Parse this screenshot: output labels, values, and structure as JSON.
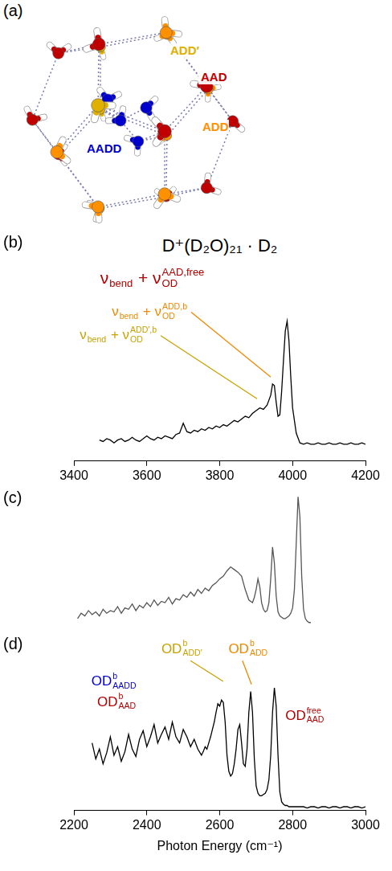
{
  "panel_labels": [
    "(a)",
    "(b)",
    "(c)",
    "(d)"
  ],
  "structure": {
    "labels": [
      {
        "text": "ADD′",
        "color": "#e0b000"
      },
      {
        "text": "AAD",
        "color": "#c00000"
      },
      {
        "text": "ADD",
        "color": "#ff9000"
      },
      {
        "text": "AADD",
        "color": "#0000cc"
      }
    ]
  },
  "chart_data": [
    {
      "type": "line",
      "title": "D⁺(D₂O)₂₁ · D₂",
      "color": "#000000",
      "xlim": [
        3400,
        4200
      ],
      "xticks": [
        3400,
        3600,
        3800,
        4000,
        4200
      ],
      "ylim": [
        0,
        1.4
      ],
      "grid": false,
      "tick_labels": "x",
      "x": [
        3470,
        3480,
        3490,
        3500,
        3510,
        3520,
        3530,
        3540,
        3550,
        3560,
        3570,
        3580,
        3590,
        3600,
        3610,
        3620,
        3630,
        3640,
        3650,
        3660,
        3670,
        3680,
        3690,
        3700,
        3710,
        3720,
        3730,
        3740,
        3750,
        3760,
        3770,
        3780,
        3790,
        3800,
        3810,
        3820,
        3830,
        3840,
        3850,
        3860,
        3870,
        3880,
        3890,
        3900,
        3910,
        3920,
        3930,
        3940,
        3945,
        3950,
        3955,
        3960,
        3965,
        3970,
        3975,
        3980,
        3985,
        3990,
        3995,
        4000,
        4010,
        4020,
        4030,
        4040,
        4050,
        4060,
        4070,
        4080,
        4090,
        4100,
        4110,
        4120,
        4130,
        4140,
        4150,
        4160,
        4170,
        4180,
        4190,
        4200
      ],
      "values": [
        0.15,
        0.14,
        0.16,
        0.15,
        0.13,
        0.15,
        0.16,
        0.14,
        0.15,
        0.17,
        0.15,
        0.14,
        0.16,
        0.18,
        0.16,
        0.15,
        0.17,
        0.16,
        0.18,
        0.17,
        0.16,
        0.19,
        0.2,
        0.27,
        0.21,
        0.2,
        0.22,
        0.21,
        0.23,
        0.22,
        0.24,
        0.23,
        0.25,
        0.24,
        0.26,
        0.25,
        0.27,
        0.29,
        0.28,
        0.3,
        0.32,
        0.31,
        0.34,
        0.36,
        0.38,
        0.37,
        0.4,
        0.47,
        0.55,
        0.54,
        0.42,
        0.32,
        0.33,
        0.5,
        0.72,
        0.93,
        1.0,
        0.86,
        0.6,
        0.38,
        0.2,
        0.13,
        0.12,
        0.13,
        0.12,
        0.12,
        0.13,
        0.12,
        0.12,
        0.13,
        0.12,
        0.12,
        0.13,
        0.12,
        0.12,
        0.13,
        0.12,
        0.12,
        0.13,
        0.12
      ],
      "annotations": [
        {
          "color": "#b00000",
          "text": [
            {
              "text": "ν"
            },
            {
              "sub": "bend"
            },
            {
              "text": " + ν"
            },
            {
              "sub": "OD",
              "sup": "AAD,free"
            }
          ]
        },
        {
          "color": "#f08800",
          "text": [
            {
              "text": "ν"
            },
            {
              "sub": "bend"
            },
            {
              "text": " + ν"
            },
            {
              "sub": "OD",
              "sup": "ADD,b"
            }
          ]
        },
        {
          "color": "#c9a200",
          "text": [
            {
              "text": "ν"
            },
            {
              "sub": "bend"
            },
            {
              "text": " + ν"
            },
            {
              "sub": "OD",
              "sup": "ADD′,b"
            }
          ]
        }
      ]
    },
    {
      "type": "line",
      "color": "#555555",
      "xlim": [
        2200,
        3000
      ],
      "ylim": [
        0,
        1.05
      ],
      "grid": false,
      "tick_labels": false,
      "x": [
        2210,
        2220,
        2230,
        2240,
        2250,
        2260,
        2270,
        2280,
        2290,
        2300,
        2310,
        2320,
        2330,
        2340,
        2350,
        2360,
        2370,
        2380,
        2390,
        2400,
        2410,
        2420,
        2430,
        2440,
        2450,
        2460,
        2470,
        2480,
        2490,
        2500,
        2510,
        2520,
        2530,
        2540,
        2550,
        2560,
        2570,
        2580,
        2590,
        2600,
        2610,
        2620,
        2630,
        2640,
        2650,
        2660,
        2670,
        2680,
        2690,
        2695,
        2700,
        2705,
        2710,
        2715,
        2720,
        2725,
        2730,
        2735,
        2740,
        2745,
        2750,
        2755,
        2760,
        2765,
        2770,
        2775,
        2780,
        2785,
        2790,
        2795,
        2800,
        2805,
        2810,
        2815,
        2820,
        2825,
        2830,
        2835,
        2840,
        2845,
        2850
      ],
      "values": [
        0.08,
        0.12,
        0.1,
        0.14,
        0.11,
        0.13,
        0.1,
        0.15,
        0.12,
        0.14,
        0.13,
        0.17,
        0.12,
        0.16,
        0.15,
        0.19,
        0.14,
        0.18,
        0.16,
        0.2,
        0.17,
        0.22,
        0.18,
        0.21,
        0.2,
        0.24,
        0.19,
        0.23,
        0.22,
        0.26,
        0.24,
        0.28,
        0.25,
        0.3,
        0.27,
        0.31,
        0.29,
        0.33,
        0.35,
        0.38,
        0.4,
        0.44,
        0.47,
        0.45,
        0.43,
        0.4,
        0.3,
        0.22,
        0.2,
        0.24,
        0.3,
        0.38,
        0.32,
        0.2,
        0.15,
        0.13,
        0.14,
        0.2,
        0.38,
        0.62,
        0.5,
        0.25,
        0.13,
        0.1,
        0.09,
        0.08,
        0.08,
        0.09,
        0.1,
        0.12,
        0.16,
        0.3,
        0.65,
        1.0,
        0.85,
        0.4,
        0.15,
        0.08,
        0.06,
        0.05,
        0.05
      ]
    },
    {
      "type": "line",
      "color": "#000000",
      "xlim": [
        2200,
        3000
      ],
      "xticks": [
        2200,
        2400,
        2600,
        2800,
        3000
      ],
      "ylim": [
        0,
        1.4
      ],
      "grid": false,
      "tick_labels": "x",
      "xlabel": "Photon Energy (cm⁻¹)",
      "x": [
        2250,
        2260,
        2270,
        2280,
        2290,
        2300,
        2310,
        2320,
        2330,
        2340,
        2350,
        2360,
        2370,
        2380,
        2390,
        2400,
        2410,
        2420,
        2430,
        2440,
        2450,
        2460,
        2470,
        2480,
        2490,
        2500,
        2510,
        2520,
        2530,
        2540,
        2550,
        2555,
        2560,
        2565,
        2570,
        2575,
        2580,
        2585,
        2590,
        2595,
        2600,
        2605,
        2610,
        2615,
        2620,
        2625,
        2630,
        2635,
        2640,
        2645,
        2650,
        2655,
        2660,
        2665,
        2670,
        2675,
        2680,
        2685,
        2690,
        2695,
        2700,
        2705,
        2710,
        2715,
        2720,
        2725,
        2730,
        2735,
        2740,
        2745,
        2750,
        2755,
        2760,
        2765,
        2770,
        2775,
        2780,
        2785,
        2790,
        2795,
        2800,
        2810,
        2820,
        2830,
        2840,
        2850,
        2860,
        2870,
        2880,
        2890,
        2900,
        2910,
        2920,
        2930,
        2940,
        2950,
        2960,
        2970,
        2980,
        2990,
        3000
      ],
      "values": [
        0.55,
        0.42,
        0.5,
        0.38,
        0.47,
        0.6,
        0.45,
        0.52,
        0.4,
        0.48,
        0.62,
        0.5,
        0.44,
        0.58,
        0.65,
        0.52,
        0.6,
        0.7,
        0.55,
        0.62,
        0.68,
        0.58,
        0.72,
        0.6,
        0.55,
        0.66,
        0.6,
        0.52,
        0.58,
        0.5,
        0.45,
        0.48,
        0.52,
        0.5,
        0.55,
        0.6,
        0.66,
        0.72,
        0.8,
        0.87,
        0.85,
        0.9,
        0.88,
        0.72,
        0.45,
        0.32,
        0.28,
        0.3,
        0.38,
        0.5,
        0.66,
        0.7,
        0.55,
        0.38,
        0.36,
        0.5,
        0.8,
        0.97,
        0.8,
        0.42,
        0.2,
        0.14,
        0.12,
        0.12,
        0.13,
        0.14,
        0.17,
        0.25,
        0.45,
        0.8,
        1.0,
        0.85,
        0.45,
        0.15,
        0.07,
        0.05,
        0.04,
        0.04,
        0.03,
        0.03,
        0.03,
        0.03,
        0.03,
        0.03,
        0.02,
        0.03,
        0.03,
        0.02,
        0.03,
        0.03,
        0.02,
        0.03,
        0.03,
        0.02,
        0.03,
        0.03,
        0.02,
        0.03,
        0.03,
        0.02,
        0.03
      ],
      "annotations": [
        {
          "color": "#0000cc",
          "text": [
            {
              "text": "OD"
            },
            {
              "sup": "b",
              "sub": "AADD"
            }
          ]
        },
        {
          "color": "#b00000",
          "text": [
            {
              "text": "OD"
            },
            {
              "sup": "b",
              "sub": "AAD"
            }
          ]
        },
        {
          "color": "#c9a200",
          "text": [
            {
              "text": "OD"
            },
            {
              "sup": "b",
              "sub": "ADD′"
            }
          ]
        },
        {
          "color": "#f08800",
          "text": [
            {
              "text": "OD"
            },
            {
              "sup": "b",
              "sub": "ADD"
            }
          ]
        },
        {
          "color": "#b00000",
          "text": [
            {
              "text": "OD"
            },
            {
              "sup": "free",
              "sub": "AAD"
            }
          ]
        }
      ]
    }
  ]
}
